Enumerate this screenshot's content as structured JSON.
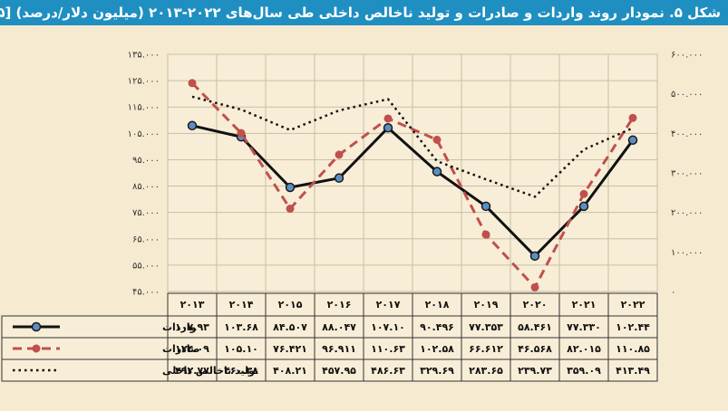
{
  "title": "شکل ۵. نمودار روند واردات و صادرات و تولید ناخالص داخلی طی سال‌های ۲۰۲۲-۲۰۱۳ (میلیون دلار/درصد) [۵]",
  "colors": {
    "title_bg": "#1f8fc1",
    "imports": "#111111",
    "imports_marker": "#5b8fc4",
    "exports": "#c0504d",
    "gdp": "#111111"
  },
  "chart_data": {
    "type": "line",
    "categories": [
      "۲۰۱۳",
      "۲۰۱۴",
      "۲۰۱۵",
      "۲۰۱۶",
      "۲۰۱۷",
      "۲۰۱۸",
      "۲۰۱۹",
      "۲۰۲۰",
      "۲۰۲۱",
      "۲۰۲۲"
    ],
    "x": [
      2013,
      2014,
      2015,
      2016,
      2017,
      2018,
      2019,
      2020,
      2021,
      2022
    ],
    "y_left": {
      "ylim": [
        45000,
        135000
      ],
      "ticks": [
        45000,
        55000,
        65000,
        75000,
        85000,
        95000,
        105000,
        115000,
        125000,
        135000
      ],
      "tick_labels": [
        "۴۵.۰۰۰",
        "۵۵.۰۰۰",
        "۶۵.۰۰۰",
        "۷۵.۰۰۰",
        "۸۵.۰۰۰",
        "۹۵.۰۰۰",
        "۱۰۵.۰۰۰",
        "۱۱۵.۰۰۰",
        "۱۲۵.۰۰۰",
        "۱۳۵.۰۰۰"
      ]
    },
    "y_right": {
      "ylim": [
        0,
        600000
      ],
      "ticks": [
        0,
        100000,
        200000,
        300000,
        400000,
        500000,
        600000
      ],
      "tick_labels": [
        "۰",
        "۱۰۰.۰۰۰",
        "۲۰۰.۰۰۰",
        "۳۰۰.۰۰۰",
        "۴۰۰.۰۰۰",
        "۵۰۰.۰۰۰",
        "۶۰۰.۰۰۰"
      ]
    },
    "grid": true,
    "series": [
      {
        "name": "واردات",
        "axis": "left",
        "values": [
          107930,
          103680,
          84507,
          88047,
          107100,
          90496,
          77353,
          58461,
          77330,
          102440
        ],
        "labels": [
          "۱۰۷.۹۳",
          "۱۰۳.۶۸",
          "۸۴.۵۰۷",
          "۸۸.۰۴۷",
          "۱۰۷.۱۰",
          "۹۰.۴۹۶",
          "۷۷.۳۵۳",
          "۵۸.۴۶۱",
          "۷۷.۳۳۰",
          "۱۰۲.۴۴"
        ]
      },
      {
        "name": "صادرات",
        "axis": "left",
        "values": [
          124090,
          105100,
          76421,
          96911,
          110630,
          102580,
          66612,
          46568,
          82015,
          110850
        ],
        "labels": [
          "۱۲۴.۰۹",
          "۱۰۵.۱۰",
          "۷۶.۴۲۱",
          "۹۶.۹۱۱",
          "۱۱۰.۶۳",
          "۱۰۲.۵۸",
          "۶۶.۶۱۲",
          "۴۶.۵۶۸",
          "۸۲.۰۱۵",
          "۱۱۰.۸۵"
        ]
      },
      {
        "name": "تولید ناخالص داخلی",
        "axis": "right",
        "values": [
          492770,
          460380,
          408210,
          457950,
          486630,
          329690,
          283650,
          239730,
          359090,
          413490
        ],
        "labels": [
          "۴۹۲.۷۷",
          "۴۶۰.۳۸",
          "۴۰۸.۲۱",
          "۴۵۷.۹۵",
          "۴۸۶.۶۳",
          "۳۲۹.۶۹",
          "۲۸۳.۶۵",
          "۲۳۹.۷۳",
          "۳۵۹.۰۹",
          "۴۱۳.۴۹"
        ]
      }
    ]
  }
}
